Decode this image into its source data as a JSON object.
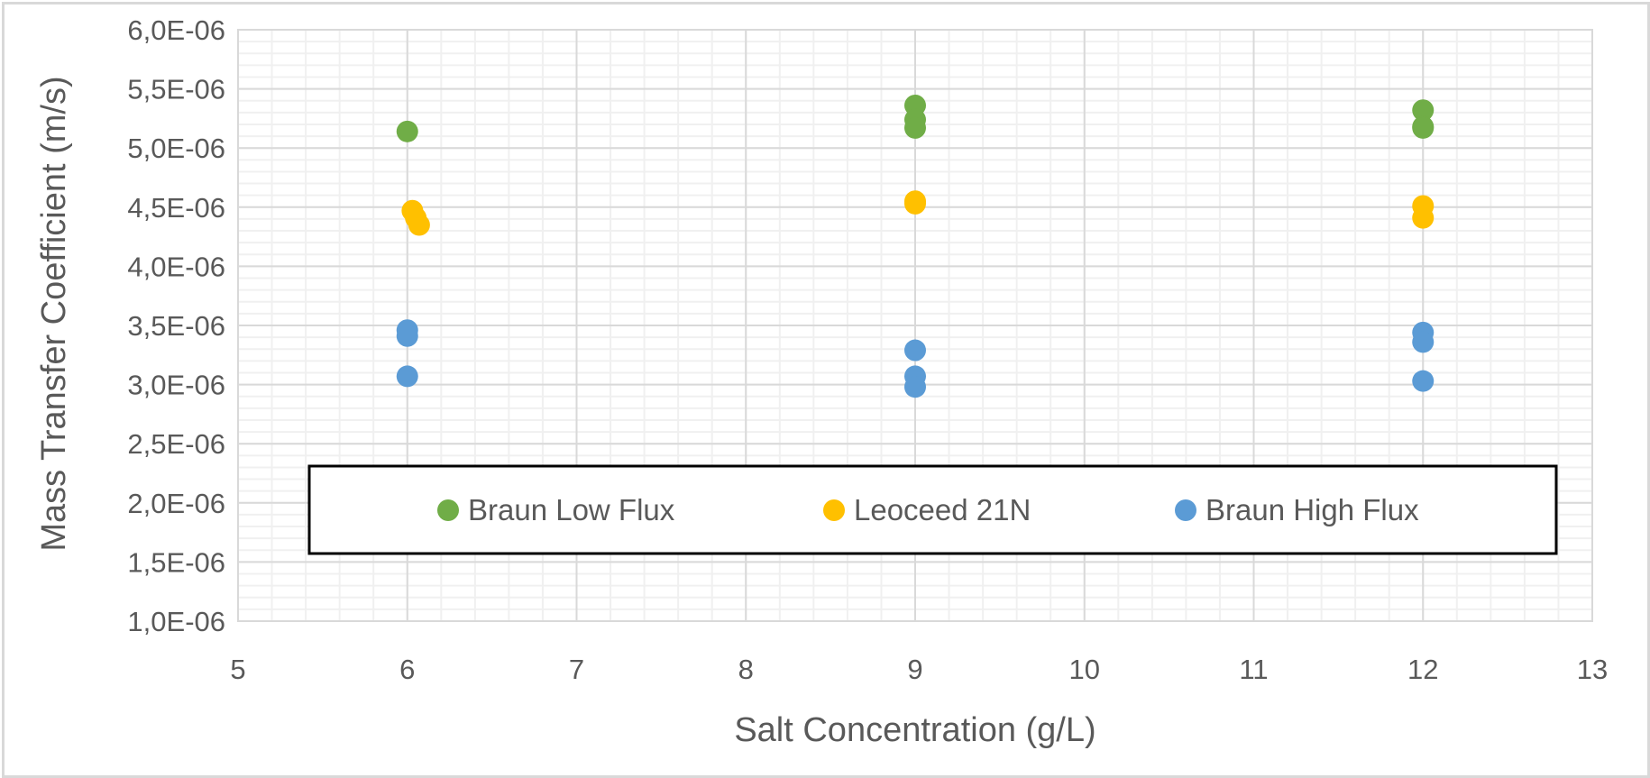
{
  "chart_data": {
    "type": "scatter",
    "title": "",
    "xlabel": "Salt Concentration (g/L)",
    "ylabel": "Mass Transfer Coefficient (m/s)",
    "xlim": [
      5,
      13
    ],
    "ylim": [
      1e-06,
      6e-06
    ],
    "x_ticks": [
      "5",
      "6",
      "7",
      "8",
      "9",
      "10",
      "11",
      "12",
      "13"
    ],
    "y_ticks": [
      "6,0E-06",
      "5,5E-06",
      "5,0E-06",
      "4,5E-06",
      "4,0E-06",
      "3,5E-06",
      "3,0E-06",
      "2,5E-06",
      "2,0E-06",
      "1,5E-06",
      "1,0E-06"
    ],
    "grid": {
      "major": true,
      "minor": true
    },
    "legend_position": "inside-bottom",
    "series": [
      {
        "name": "Braun Low Flux",
        "color": "#70ad47",
        "points": [
          {
            "x": 6,
            "y": 5.14e-06
          },
          {
            "x": 9,
            "y": 5.36e-06
          },
          {
            "x": 9,
            "y": 5.24e-06
          },
          {
            "x": 9,
            "y": 5.17e-06
          },
          {
            "x": 12,
            "y": 5.32e-06
          },
          {
            "x": 12,
            "y": 5.18e-06
          },
          {
            "x": 12,
            "y": 5.17e-06
          }
        ]
      },
      {
        "name": "Leoceed 21N",
        "color": "#ffc000",
        "points": [
          {
            "x": 6.03,
            "y": 4.47e-06
          },
          {
            "x": 6.05,
            "y": 4.41e-06
          },
          {
            "x": 6.07,
            "y": 4.35e-06
          },
          {
            "x": 9,
            "y": 4.55e-06
          },
          {
            "x": 9,
            "y": 4.53e-06
          },
          {
            "x": 12,
            "y": 4.51e-06
          },
          {
            "x": 12,
            "y": 4.41e-06
          }
        ]
      },
      {
        "name": "Braun High Flux",
        "color": "#5b9bd5",
        "points": [
          {
            "x": 6,
            "y": 3.46e-06
          },
          {
            "x": 6,
            "y": 3.41e-06
          },
          {
            "x": 6,
            "y": 3.07e-06
          },
          {
            "x": 9,
            "y": 3.29e-06
          },
          {
            "x": 9,
            "y": 3.07e-06
          },
          {
            "x": 9,
            "y": 2.98e-06
          },
          {
            "x": 12,
            "y": 3.44e-06
          },
          {
            "x": 12,
            "y": 3.36e-06
          },
          {
            "x": 12,
            "y": 3.03e-06
          }
        ]
      }
    ]
  }
}
